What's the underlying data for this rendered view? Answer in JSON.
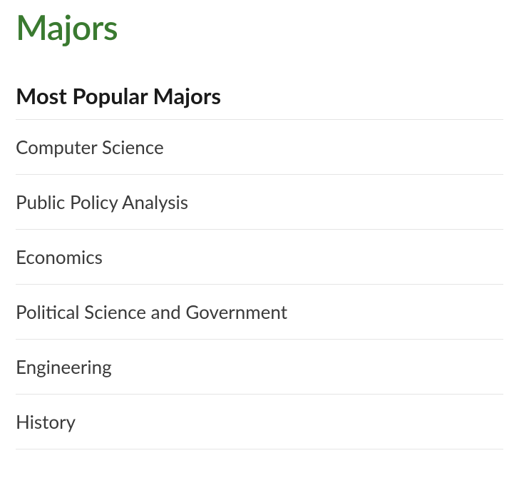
{
  "section": {
    "title": "Majors",
    "subheading": "Most Popular Majors"
  },
  "majors": [
    "Computer Science",
    "Public Policy Analysis",
    "Economics",
    "Political Science and Government",
    "Engineering",
    "History"
  ]
}
